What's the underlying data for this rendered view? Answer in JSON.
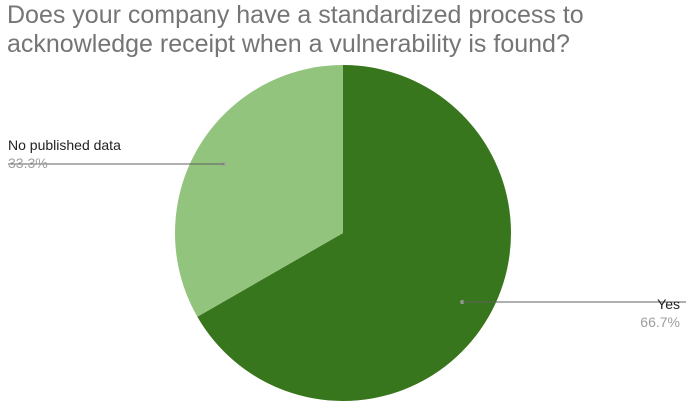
{
  "chart_data": {
    "type": "pie",
    "title_lines": [
      "Does your company have a standardized process to",
      "acknowledge receipt when a vulnerability is found?"
    ],
    "categories": [
      "Yes",
      "No published data"
    ],
    "values": [
      66.7,
      33.3
    ],
    "value_labels": [
      "66.7%",
      "33.3%"
    ],
    "colors": [
      "#38761d",
      "#93c47d"
    ],
    "start_angle_deg": 0,
    "direction": "clockwise",
    "legend": "none",
    "label_style": "leader-lines"
  }
}
